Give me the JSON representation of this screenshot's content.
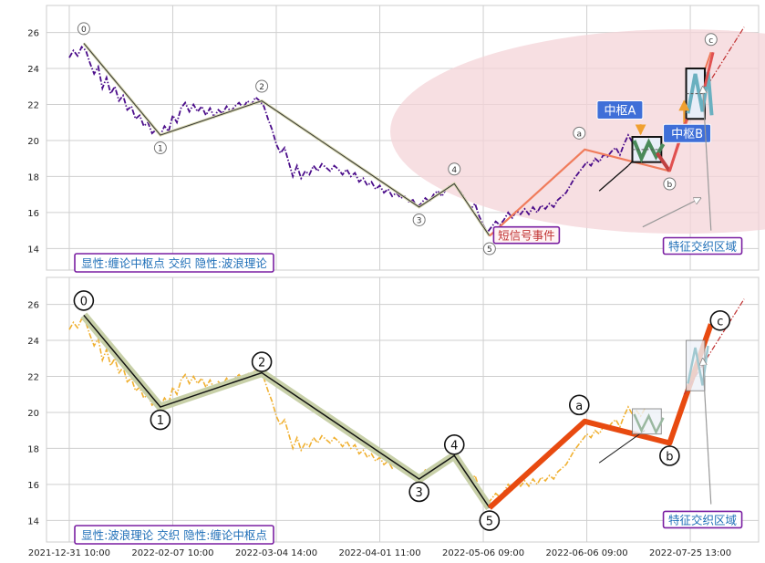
{
  "chart_data": [
    {
      "type": "line",
      "panel": "top",
      "ylim": [
        12.8,
        27.5
      ],
      "yticks": [
        14,
        16,
        18,
        20,
        22,
        24,
        26
      ],
      "grid": true,
      "legend_box": "显性:缠论中枢点 交织 隐性:波浪理论",
      "wave_points": [
        {
          "label": "0",
          "x": 0.07,
          "y": 25.4
        },
        {
          "label": "1",
          "x": 0.44,
          "y": 20.3
        },
        {
          "label": "2",
          "x": 0.93,
          "y": 22.2
        },
        {
          "label": "3",
          "x": 1.69,
          "y": 16.3
        },
        {
          "label": "4",
          "x": 1.86,
          "y": 17.6
        },
        {
          "label": "5",
          "x": 2.03,
          "y": 14.7
        },
        {
          "label": "a",
          "x": 2.49,
          "y": 19.5
        },
        {
          "label": "b",
          "x": 2.9,
          "y": 18.3
        },
        {
          "label": "c",
          "x": 3.1,
          "y": 24.9
        }
      ],
      "price_series": [
        [
          0.0,
          24.6
        ],
        [
          0.02,
          25.0
        ],
        [
          0.04,
          24.7
        ],
        [
          0.06,
          25.2
        ],
        [
          0.08,
          25.0
        ],
        [
          0.1,
          24.3
        ],
        [
          0.12,
          23.7
        ],
        [
          0.14,
          24.1
        ],
        [
          0.16,
          22.9
        ],
        [
          0.18,
          23.5
        ],
        [
          0.2,
          22.6
        ],
        [
          0.22,
          23.0
        ],
        [
          0.24,
          22.2
        ],
        [
          0.26,
          22.5
        ],
        [
          0.28,
          21.7
        ],
        [
          0.3,
          21.9
        ],
        [
          0.32,
          21.2
        ],
        [
          0.34,
          21.4
        ],
        [
          0.36,
          20.8
        ],
        [
          0.38,
          21.0
        ],
        [
          0.4,
          20.4
        ],
        [
          0.42,
          20.6
        ],
        [
          0.44,
          20.3
        ],
        [
          0.46,
          20.8
        ],
        [
          0.48,
          20.5
        ],
        [
          0.5,
          21.4
        ],
        [
          0.52,
          21.0
        ],
        [
          0.54,
          21.8
        ],
        [
          0.56,
          22.1
        ],
        [
          0.58,
          21.6
        ],
        [
          0.6,
          22.0
        ],
        [
          0.62,
          21.6
        ],
        [
          0.64,
          21.9
        ],
        [
          0.66,
          21.4
        ],
        [
          0.68,
          21.8
        ],
        [
          0.7,
          21.3
        ],
        [
          0.72,
          21.7
        ],
        [
          0.74,
          21.5
        ],
        [
          0.76,
          21.9
        ],
        [
          0.78,
          21.6
        ],
        [
          0.8,
          21.9
        ],
        [
          0.82,
          22.1
        ],
        [
          0.84,
          21.8
        ],
        [
          0.86,
          22.2
        ],
        [
          0.88,
          22.0
        ],
        [
          0.9,
          22.4
        ],
        [
          0.92,
          22.2
        ],
        [
          0.94,
          21.9
        ],
        [
          0.96,
          21.2
        ],
        [
          0.98,
          20.6
        ],
        [
          1.0,
          19.8
        ],
        [
          1.02,
          19.3
        ],
        [
          1.04,
          19.6
        ],
        [
          1.06,
          18.8
        ],
        [
          1.08,
          18.0
        ],
        [
          1.1,
          18.6
        ],
        [
          1.12,
          17.9
        ],
        [
          1.14,
          18.3
        ],
        [
          1.16,
          18.1
        ],
        [
          1.18,
          18.6
        ],
        [
          1.2,
          18.3
        ],
        [
          1.22,
          18.7
        ],
        [
          1.24,
          18.5
        ],
        [
          1.26,
          18.3
        ],
        [
          1.28,
          18.6
        ],
        [
          1.3,
          18.4
        ],
        [
          1.32,
          18.1
        ],
        [
          1.34,
          18.4
        ],
        [
          1.36,
          18.0
        ],
        [
          1.38,
          18.2
        ],
        [
          1.4,
          17.7
        ],
        [
          1.42,
          17.9
        ],
        [
          1.44,
          17.5
        ],
        [
          1.46,
          17.7
        ],
        [
          1.48,
          17.3
        ],
        [
          1.5,
          17.5
        ],
        [
          1.52,
          17.1
        ],
        [
          1.54,
          17.3
        ],
        [
          1.56,
          16.9
        ],
        [
          1.58,
          17.1
        ],
        [
          1.6,
          16.8
        ],
        [
          1.62,
          16.9
        ],
        [
          1.64,
          16.6
        ],
        [
          1.66,
          16.7
        ],
        [
          1.68,
          16.3
        ],
        [
          1.7,
          16.5
        ],
        [
          1.72,
          16.8
        ],
        [
          1.74,
          16.6
        ],
        [
          1.76,
          17.0
        ],
        [
          1.78,
          17.2
        ],
        [
          1.8,
          16.9
        ],
        [
          1.82,
          17.3
        ],
        [
          1.84,
          17.5
        ],
        [
          1.86,
          17.6
        ],
        [
          1.88,
          17.3
        ],
        [
          1.9,
          17.0
        ],
        [
          1.92,
          16.6
        ],
        [
          1.94,
          16.2
        ],
        [
          1.96,
          16.5
        ],
        [
          1.98,
          15.8
        ],
        [
          2.0,
          15.3
        ],
        [
          2.02,
          14.9
        ],
        [
          2.04,
          15.2
        ],
        [
          2.06,
          15.5
        ],
        [
          2.08,
          15.3
        ],
        [
          2.1,
          15.6
        ],
        [
          2.12,
          16.0
        ],
        [
          2.14,
          15.7
        ],
        [
          2.16,
          16.1
        ],
        [
          2.18,
          15.9
        ],
        [
          2.2,
          16.2
        ],
        [
          2.22,
          15.9
        ],
        [
          2.24,
          16.3
        ],
        [
          2.26,
          16.0
        ],
        [
          2.28,
          16.4
        ],
        [
          2.3,
          16.2
        ],
        [
          2.32,
          16.5
        ],
        [
          2.34,
          16.3
        ],
        [
          2.36,
          16.7
        ],
        [
          2.38,
          16.9
        ],
        [
          2.4,
          17.1
        ],
        [
          2.42,
          17.5
        ],
        [
          2.44,
          17.9
        ],
        [
          2.46,
          18.2
        ],
        [
          2.48,
          18.5
        ],
        [
          2.5,
          18.8
        ],
        [
          2.52,
          18.6
        ],
        [
          2.54,
          19.0
        ],
        [
          2.56,
          18.8
        ],
        [
          2.58,
          19.2
        ],
        [
          2.6,
          19.1
        ],
        [
          2.62,
          19.4
        ],
        [
          2.64,
          19.6
        ],
        [
          2.66,
          19.2
        ],
        [
          2.68,
          19.8
        ],
        [
          2.7,
          20.3
        ],
        [
          2.72,
          19.9
        ],
        [
          2.74,
          20.1
        ],
        [
          2.76,
          19.8
        ],
        [
          2.78,
          20.2
        ]
      ],
      "annotations": [
        {
          "text": "中枢A"
        },
        {
          "text": "中枢B"
        },
        {
          "text": "短信号事件"
        },
        {
          "text": "特征交织区域"
        }
      ]
    },
    {
      "type": "line",
      "panel": "bottom",
      "ylim": [
        12.8,
        27.5
      ],
      "yticks": [
        14,
        16,
        18,
        20,
        22,
        24,
        26
      ],
      "grid": true,
      "legend_box": "显性:波浪理论 交织 隐性:缠论中枢点",
      "xticks": [
        "2021-12-31 10:00",
        "2022-02-07 10:00",
        "2022-03-04 14:00",
        "2022-04-01 11:00",
        "2022-05-06 09:00",
        "2022-06-06 09:00",
        "2022-07-25 13:00"
      ],
      "annotations": [
        {
          "text": "特征交织区域"
        }
      ]
    }
  ],
  "colors": {
    "top_price": "#4b0d8a",
    "bottom_price": "#f0b030",
    "wave_line": "#1a1a1a",
    "wave_highlight": "#c8d0a8",
    "impulse_line": "#f07c5c",
    "impulse_thick": "#e84a10",
    "ellipse_fill": "#f4d4d8",
    "pivot_label_bg": "#3f6fd8",
    "box_border": "#7a1fa2",
    "box_text": "#1f6fb8"
  }
}
